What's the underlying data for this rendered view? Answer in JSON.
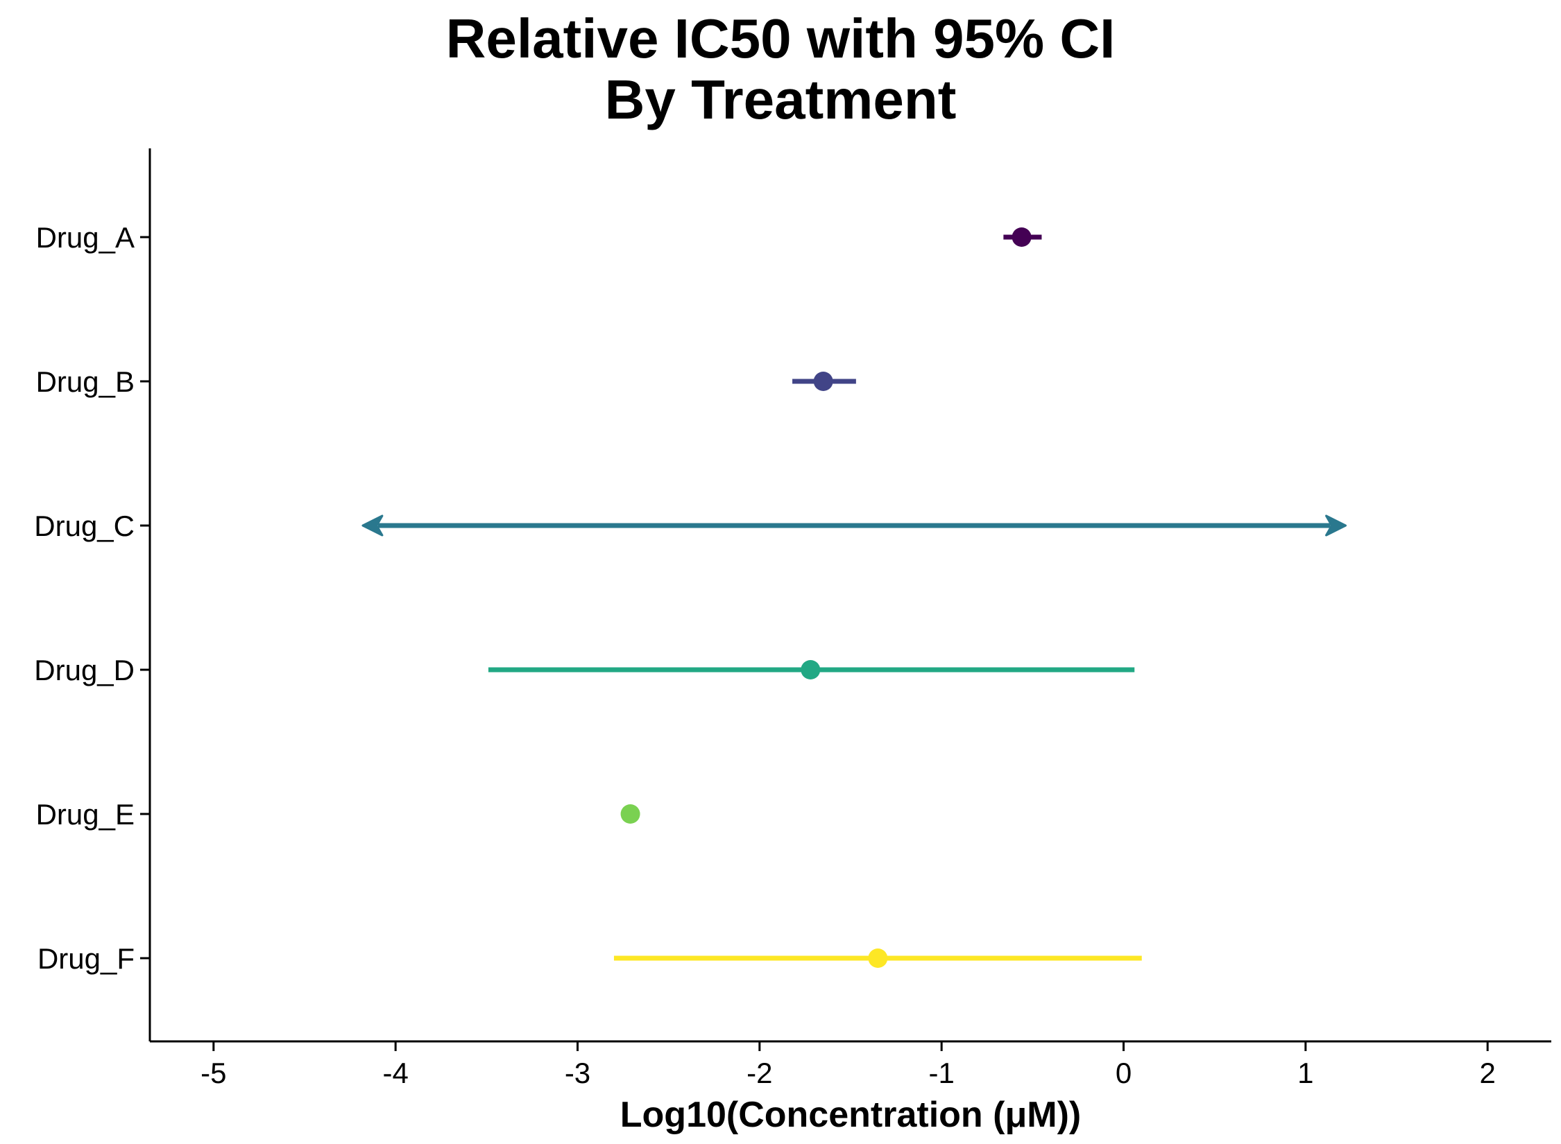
{
  "chart_data": {
    "type": "scatter",
    "title_line1": "Relative IC50 with 95% CI",
    "title_line2": "By Treatment",
    "xlabel": "Log10(Concentration (μM))",
    "ylabel": "",
    "xlim": [
      -5.35,
      2.35
    ],
    "x_ticks": [
      -5,
      -4,
      -3,
      -2,
      -1,
      0,
      1,
      2
    ],
    "x_tick_labels": [
      "-5",
      "-4",
      "-3",
      "-2",
      "-1",
      "0",
      "1",
      "2"
    ],
    "grid": false,
    "legend": "none",
    "series": [
      {
        "name": "Drug_A",
        "estimate": -0.56,
        "lower": -0.66,
        "upper": -0.45,
        "color": "#440154",
        "lower_open": false,
        "upper_open": false
      },
      {
        "name": "Drug_B",
        "estimate": -1.65,
        "lower": -1.82,
        "upper": -1.47,
        "color": "#414487",
        "lower_open": false,
        "upper_open": false
      },
      {
        "name": "Drug_C",
        "estimate": null,
        "lower": -4.18,
        "upper": 1.22,
        "color": "#2A788E",
        "lower_open": true,
        "upper_open": true
      },
      {
        "name": "Drug_D",
        "estimate": -1.72,
        "lower": -3.49,
        "upper": 0.06,
        "color": "#22A884",
        "lower_open": false,
        "upper_open": false
      },
      {
        "name": "Drug_E",
        "estimate": -2.71,
        "lower": -2.75,
        "upper": -2.67,
        "color": "#7AD151",
        "lower_open": false,
        "upper_open": false
      },
      {
        "name": "Drug_F",
        "estimate": -1.35,
        "lower": -2.8,
        "upper": 0.1,
        "color": "#FDE725",
        "lower_open": false,
        "upper_open": false
      }
    ]
  }
}
